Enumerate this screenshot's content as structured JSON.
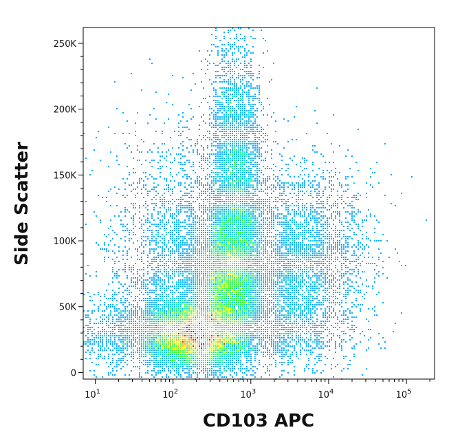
{
  "chart_data": {
    "type": "scatter",
    "plot_style": "flow-cytometry pseudocolor density dot plot",
    "xlabel": "CD103 APC",
    "ylabel": "Side Scatter",
    "x_scale": "log",
    "xlim": [
      7,
      230000
    ],
    "ylim": [
      -5000,
      262000
    ],
    "x_ticks": [
      {
        "value": 10,
        "base": "10",
        "exp": "1"
      },
      {
        "value": 100,
        "base": "10",
        "exp": "2"
      },
      {
        "value": 1000,
        "base": "10",
        "exp": "3"
      },
      {
        "value": 10000,
        "base": "10",
        "exp": "4"
      },
      {
        "value": 100000,
        "base": "10",
        "exp": "5"
      }
    ],
    "y_ticks": [
      {
        "value": 0,
        "label": "0"
      },
      {
        "value": 50000,
        "label": "50K"
      },
      {
        "value": 100000,
        "label": "100K"
      },
      {
        "value": 150000,
        "label": "150K"
      },
      {
        "value": 200000,
        "label": "200K"
      },
      {
        "value": 250000,
        "label": "250K"
      }
    ],
    "density_colors": [
      "#0000e6",
      "#00a8ff",
      "#00e0c8",
      "#40ff40",
      "#d8ff00",
      "#ffa000",
      "#e02000"
    ],
    "populations": [
      {
        "center_x": 200,
        "center_y": 28000,
        "spread_log_x": 0.3,
        "spread_y": 12000,
        "weight": 0.3
      },
      {
        "center_x": 500,
        "center_y": 70000,
        "spread_log_x": 0.25,
        "spread_y": 25000,
        "weight": 0.2
      },
      {
        "center_x": 650,
        "center_y": 150000,
        "spread_log_x": 0.18,
        "spread_y": 50000,
        "weight": 0.14
      },
      {
        "center_x": 4000,
        "center_y": 85000,
        "spread_log_x": 0.45,
        "spread_y": 35000,
        "weight": 0.14
      },
      {
        "center_x": 150,
        "center_y": 90000,
        "spread_log_x": 0.5,
        "spread_y": 45000,
        "weight": 0.12
      },
      {
        "center_x": 40,
        "center_y": 30000,
        "spread_log_x": 0.45,
        "spread_y": 15000,
        "weight": 0.06
      },
      {
        "center_x": 2000,
        "center_y": 30000,
        "spread_log_x": 0.5,
        "spread_y": 15000,
        "weight": 0.04
      }
    ],
    "grid": false,
    "legend": "none"
  }
}
